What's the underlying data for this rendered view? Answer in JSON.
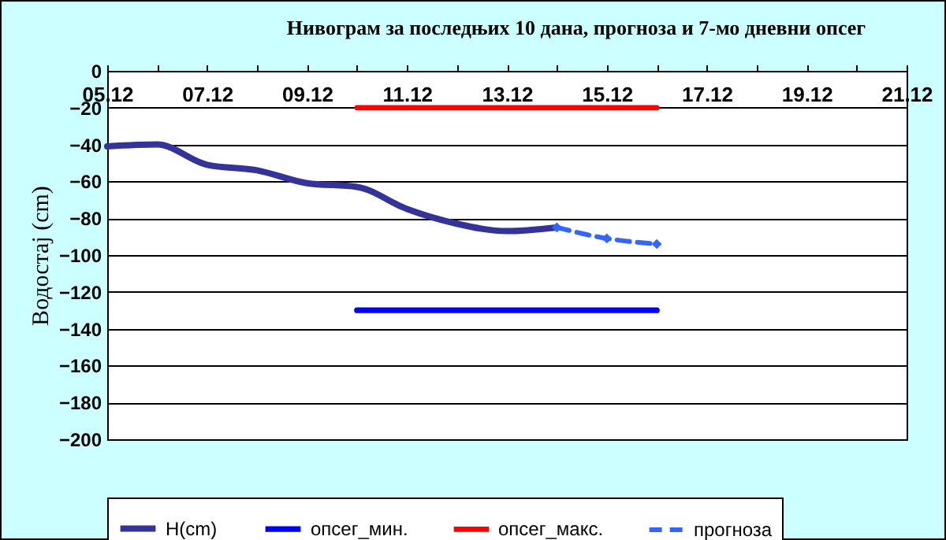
{
  "chart_data": {
    "type": "line",
    "title": "Нивограм за последњих 10 дана, прогноза и 7-мо дневни опсег",
    "ylabel": "Водостај (cm)",
    "xlim": [
      "--12-05",
      "--12-21"
    ],
    "xticks": [
      {
        "value": "--12-05",
        "label": "05.12"
      },
      {
        "value": "--12-06",
        "label": null
      },
      {
        "value": "--12-07",
        "label": "07.12"
      },
      {
        "value": "--12-08",
        "label": null
      },
      {
        "value": "--12-09",
        "label": "09.12"
      },
      {
        "value": "--12-10",
        "label": null
      },
      {
        "value": "--12-11",
        "label": "11.12"
      },
      {
        "value": "--12-12",
        "label": null
      },
      {
        "value": "--12-13",
        "label": "13.12"
      },
      {
        "value": "--12-14",
        "label": null
      },
      {
        "value": "--12-15",
        "label": "15.12"
      },
      {
        "value": "--12-16",
        "label": null
      },
      {
        "value": "--12-17",
        "label": "17.12"
      },
      {
        "value": "--12-18",
        "label": null
      },
      {
        "value": "--12-19",
        "label": "19.12"
      },
      {
        "value": "--12-20",
        "label": null
      },
      {
        "value": "--12-21",
        "label": "21.12"
      }
    ],
    "ylim": [
      -200,
      0
    ],
    "yticks": [
      -200,
      -180,
      -160,
      -140,
      -120,
      -100,
      -80,
      -60,
      -40,
      -20,
      0
    ],
    "grid": "y",
    "legend": "bottom",
    "series": [
      {
        "name": "H(cm)",
        "color": "#333399",
        "x": [
          "--12-05",
          "--12-06",
          "--12-07",
          "--12-08",
          "--12-09",
          "--12-10",
          "--12-11",
          "--12-12",
          "--12-13",
          "--12-14"
        ],
        "values": [
          -41,
          -40,
          -51,
          -54,
          -61,
          -63,
          -75,
          -83,
          -87,
          -85
        ]
      },
      {
        "name": "опсег_мин.",
        "color": "#0000ff",
        "x": [
          "--12-10",
          "--12-16"
        ],
        "values": [
          -130,
          -130
        ]
      },
      {
        "name": "опсег_макс.",
        "color": "#ff0000",
        "x": [
          "--12-10",
          "--12-16"
        ],
        "values": [
          -20,
          -20
        ]
      },
      {
        "name": "прогноза",
        "color": "#3366ff",
        "marker": "diamond",
        "line_style": "dashed",
        "x": [
          "--12-14",
          "--12-15",
          "--12-16"
        ],
        "values": [
          -85,
          -91,
          -94
        ]
      }
    ]
  }
}
